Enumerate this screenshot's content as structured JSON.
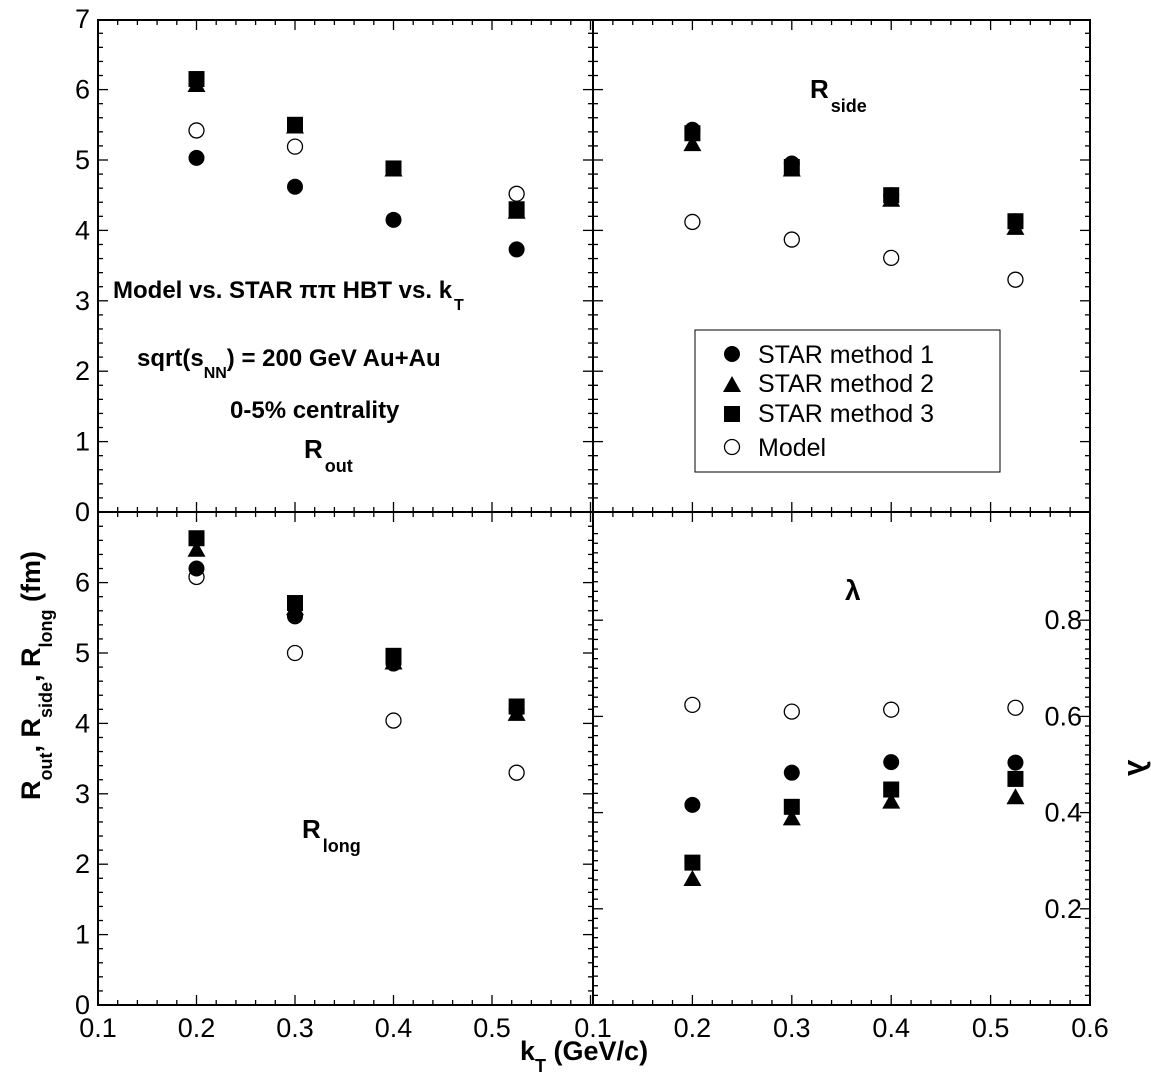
{
  "figure": {
    "y_axis_label": {
      "R1": "R",
      "s1": "out",
      "c1": ", ",
      "R2": "R",
      "s2": "side",
      "c2": ", ",
      "R3": "R",
      "s3": "long",
      "unit": " (fm)"
    },
    "x_axis_label": {
      "k": "k",
      "sub": "T",
      "unit": " (GeV/c)"
    },
    "legend": [
      {
        "label": "STAR method 1",
        "marker": "circle-filled"
      },
      {
        "label": "STAR method 2",
        "marker": "triangle-filled"
      },
      {
        "label": "STAR method 3",
        "marker": "square-filled"
      },
      {
        "label": "Model",
        "marker": "circle-open"
      }
    ],
    "info": {
      "line1_main": "Model vs. STAR ππ HBT vs. k",
      "line1_sub": "T",
      "line2_pre": "sqrt(s",
      "line2_sub": "NN",
      "line2_post": ") = 200 GeV Au+Au",
      "line3": "0-5% centrality"
    }
  },
  "chart_data": [
    {
      "type": "scatter",
      "panel": "top-left",
      "title": "R",
      "title_sub": "out",
      "xlim": [
        0.1,
        0.6
      ],
      "ylim": [
        0,
        7
      ],
      "yticks": [
        "0",
        "1",
        "2",
        "3",
        "4",
        "5",
        "6",
        "7"
      ],
      "x": [
        0.2,
        0.3,
        0.4,
        0.525
      ],
      "series": [
        {
          "name": "STAR method 1",
          "values": [
            5.03,
            4.62,
            4.15,
            3.73
          ]
        },
        {
          "name": "STAR method 2",
          "values": [
            6.08,
            5.49,
            4.88,
            4.28
          ]
        },
        {
          "name": "STAR method 3",
          "values": [
            6.15,
            5.5,
            4.88,
            4.3
          ]
        },
        {
          "name": "Model",
          "values": [
            5.42,
            5.19,
            null,
            4.52
          ]
        }
      ]
    },
    {
      "type": "scatter",
      "panel": "top-right",
      "title": "R",
      "title_sub": "side",
      "xlim": [
        0.1,
        0.6
      ],
      "ylim": [
        0,
        7
      ],
      "x": [
        0.2,
        0.3,
        0.4,
        0.525
      ],
      "series": [
        {
          "name": "STAR method 1",
          "values": [
            5.43,
            4.95,
            4.5,
            4.13
          ]
        },
        {
          "name": "STAR method 2",
          "values": [
            5.24,
            4.88,
            4.45,
            4.05
          ]
        },
        {
          "name": "STAR method 3",
          "values": [
            5.38,
            4.9,
            4.5,
            4.13
          ]
        },
        {
          "name": "Model",
          "values": [
            4.12,
            3.87,
            3.61,
            3.3
          ]
        }
      ]
    },
    {
      "type": "scatter",
      "panel": "bottom-left",
      "title": "R",
      "title_sub": "long",
      "xlim": [
        0.1,
        0.6
      ],
      "ylim": [
        0,
        7
      ],
      "xticks": [
        "0.1",
        "0.2",
        "0.3",
        "0.4",
        "0.5"
      ],
      "yticks": [
        "0",
        "1",
        "2",
        "3",
        "4",
        "5",
        "6"
      ],
      "x": [
        0.2,
        0.3,
        0.4,
        0.525
      ],
      "series": [
        {
          "name": "STAR method 1",
          "values": [
            6.2,
            5.52,
            4.85,
            4.2
          ]
        },
        {
          "name": "STAR method 2",
          "values": [
            6.48,
            5.65,
            4.88,
            4.15
          ]
        },
        {
          "name": "STAR method 3",
          "values": [
            6.63,
            5.71,
            4.96,
            4.24
          ]
        },
        {
          "name": "Model",
          "values": [
            6.08,
            5.0,
            4.04,
            3.3
          ]
        }
      ]
    },
    {
      "type": "scatter",
      "panel": "bottom-right",
      "title": "λ",
      "ylabel": "λ",
      "xlim": [
        0.1,
        0.6
      ],
      "ylim": [
        0,
        1.0
      ],
      "xticks": [
        "0.1",
        "0.2",
        "0.3",
        "0.4",
        "0.5",
        "0.6"
      ],
      "yticks": [
        "0.2",
        "0.4",
        "0.6",
        "0.8"
      ],
      "x": [
        0.2,
        0.3,
        0.4,
        0.525
      ],
      "series": [
        {
          "name": "STAR method 1",
          "values": [
            0.416,
            0.483,
            0.505,
            0.504
          ]
        },
        {
          "name": "STAR method 2",
          "values": [
            0.264,
            0.39,
            0.425,
            0.434
          ]
        },
        {
          "name": "STAR method 3",
          "values": [
            0.296,
            0.412,
            0.448,
            0.47
          ]
        },
        {
          "name": "Model",
          "values": [
            0.624,
            0.61,
            0.614,
            0.618
          ]
        }
      ]
    }
  ]
}
